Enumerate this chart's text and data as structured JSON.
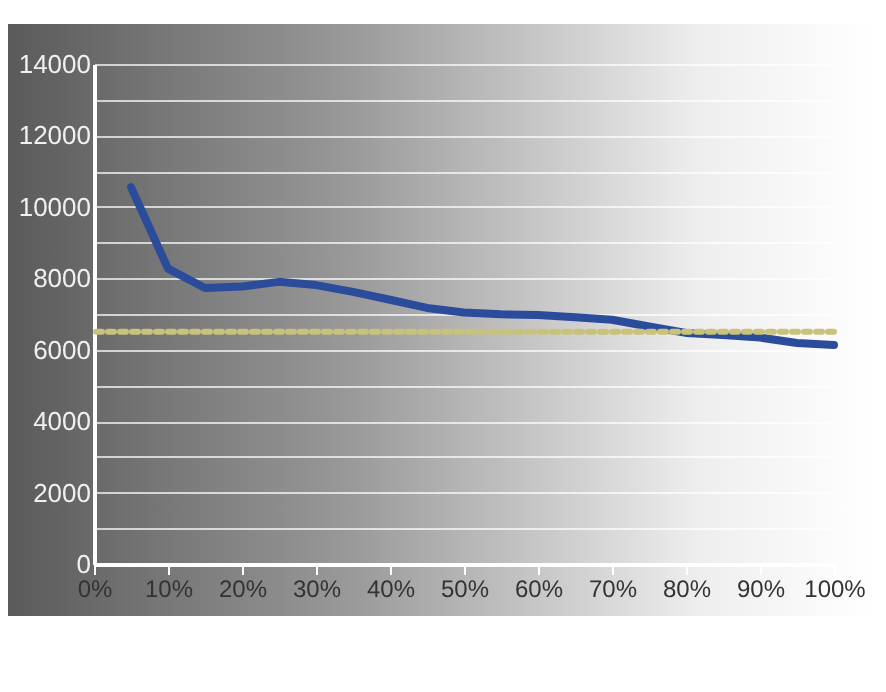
{
  "chart_data": {
    "type": "line",
    "x": [
      5,
      10,
      15,
      20,
      25,
      30,
      35,
      40,
      45,
      50,
      55,
      60,
      65,
      70,
      75,
      80,
      85,
      90,
      95,
      100
    ],
    "series": [
      {
        "color": "#2b4c9b",
        "values": [
          10550,
          8270,
          7730,
          7770,
          7900,
          7810,
          7620,
          7400,
          7170,
          7040,
          6990,
          6970,
          6910,
          6840,
          6650,
          6470,
          6410,
          6340,
          6190,
          6130
        ]
      }
    ],
    "xlim": [
      0,
      100
    ],
    "xticks": [
      {
        "value": 0,
        "label": "0%"
      },
      {
        "value": 10,
        "label": "10%"
      },
      {
        "value": 20,
        "label": "20%"
      },
      {
        "value": 30,
        "label": "30%"
      },
      {
        "value": 40,
        "label": "40%"
      },
      {
        "value": 50,
        "label": "50%"
      },
      {
        "value": 60,
        "label": "60%"
      },
      {
        "value": 70,
        "label": "70%"
      },
      {
        "value": 80,
        "label": "80%"
      },
      {
        "value": 90,
        "label": "90%"
      },
      {
        "value": 100,
        "label": "100%"
      }
    ],
    "ylim": [
      0,
      14000
    ],
    "yticks": [
      0,
      {
        "value": 1000,
        "label": null
      },
      2000,
      {
        "value": 3000,
        "label": null
      },
      4000,
      {
        "value": 5000,
        "label": null
      },
      6000,
      {
        "value": 7000,
        "label": null
      },
      8000,
      {
        "value": 9000,
        "label": null
      },
      10000,
      {
        "value": 11000,
        "label": null
      },
      12000,
      {
        "value": 13000,
        "label": null
      },
      14000
    ],
    "grid": "y",
    "marker": "none",
    "line_style": "solid",
    "ref_lines": [
      {
        "axis": "y",
        "value": 6500,
        "color": "#c9c27a",
        "line_style": "dotted"
      }
    ]
  }
}
